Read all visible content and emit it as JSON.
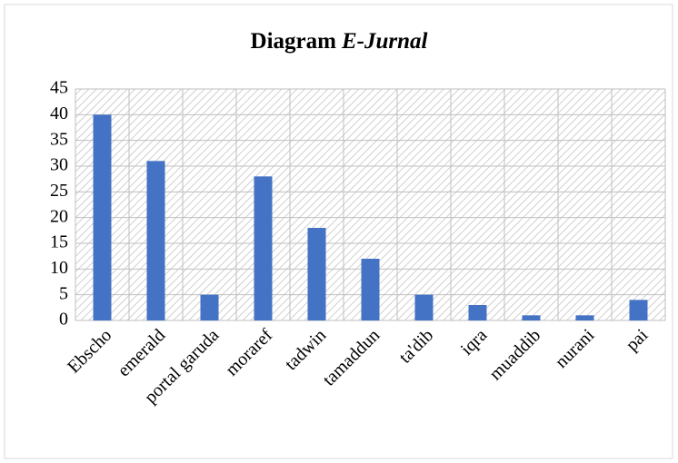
{
  "chart_data": {
    "type": "bar",
    "title": [
      "Diagram",
      "E-Jurnal"
    ],
    "categories": [
      "Ebscho",
      "emerald",
      "portal garuda",
      "moraref",
      "tadwin",
      "tamaddun",
      "ta'dib",
      "iqra",
      "muaddib",
      "nurani",
      "pai"
    ],
    "values": [
      40,
      31,
      5,
      28,
      18,
      12,
      5,
      3,
      1,
      1,
      4
    ],
    "color": "#4472c4",
    "ylim": [
      0,
      45
    ],
    "yticks": [
      0,
      5,
      10,
      15,
      20,
      25,
      30,
      35,
      40,
      45
    ],
    "grid": true
  }
}
